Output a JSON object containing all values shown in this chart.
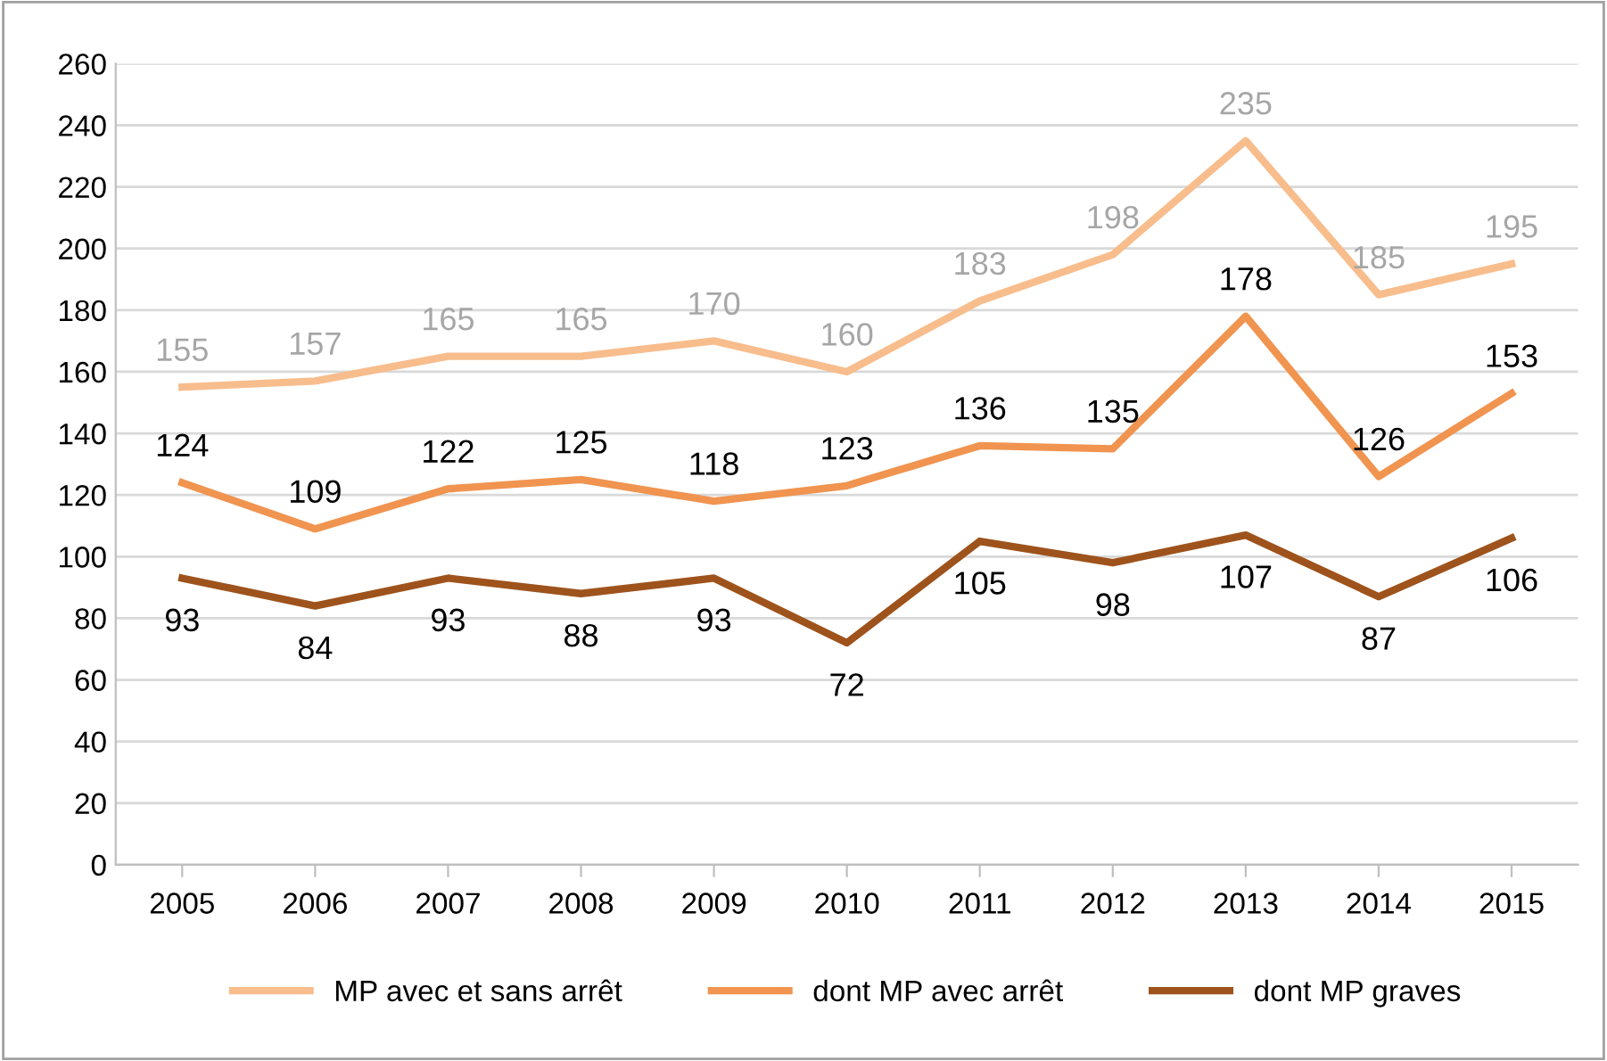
{
  "chart_data": {
    "type": "line",
    "categories": [
      "2005",
      "2006",
      "2007",
      "2008",
      "2009",
      "2010",
      "2011",
      "2012",
      "2013",
      "2014",
      "2015"
    ],
    "series": [
      {
        "name": "MP avec et sans arrêt",
        "color": "#f8bd8c",
        "values": [
          155,
          157,
          165,
          165,
          170,
          160,
          183,
          198,
          235,
          185,
          195
        ]
      },
      {
        "name": "dont MP avec arrêt",
        "color": "#f09450",
        "values": [
          124,
          109,
          122,
          125,
          118,
          123,
          136,
          135,
          178,
          126,
          153
        ]
      },
      {
        "name": "dont MP graves",
        "color": "#9e531c",
        "values": [
          93,
          84,
          93,
          88,
          93,
          72,
          105,
          98,
          107,
          87,
          106
        ]
      }
    ],
    "ylim": [
      0,
      260
    ],
    "yticks": [
      0,
      20,
      40,
      60,
      80,
      100,
      120,
      140,
      160,
      180,
      200,
      220,
      240,
      260
    ],
    "grid": "y",
    "legend": "bottom",
    "data_labels": true,
    "marker": "none",
    "line_style": "solid"
  }
}
